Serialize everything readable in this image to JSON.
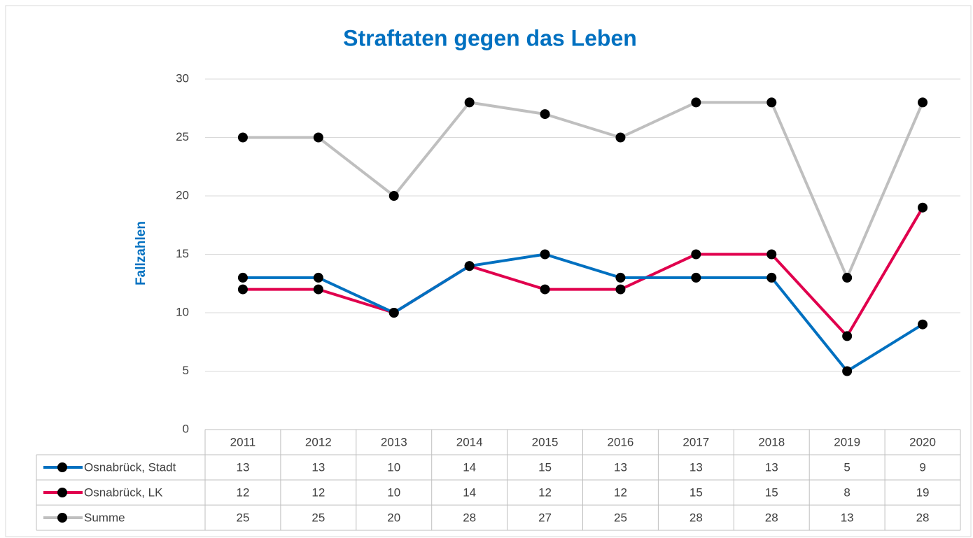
{
  "chart_data": {
    "type": "line",
    "title": "Straftaten gegen das Leben",
    "y_label": "Fallzahlen",
    "categories": [
      "2011",
      "2012",
      "2013",
      "2014",
      "2015",
      "2016",
      "2017",
      "2018",
      "2019",
      "2020"
    ],
    "series": [
      {
        "name": "Osnabrück, Stadt",
        "color": "#0070c0",
        "values": [
          13,
          13,
          10,
          14,
          15,
          13,
          13,
          13,
          5,
          9
        ]
      },
      {
        "name": "Osnabrück, LK",
        "color": "#e0004d",
        "values": [
          12,
          12,
          10,
          14,
          12,
          12,
          15,
          15,
          8,
          19
        ]
      },
      {
        "name": "Summe",
        "color": "#bfbfbf",
        "values": [
          25,
          25,
          20,
          28,
          27,
          25,
          28,
          28,
          13,
          28
        ]
      }
    ],
    "marker_color": "#000000",
    "ylim": [
      0,
      30
    ],
    "yticks": [
      0,
      5,
      10,
      15,
      20,
      25,
      30
    ],
    "grid": true,
    "data_table": true
  }
}
